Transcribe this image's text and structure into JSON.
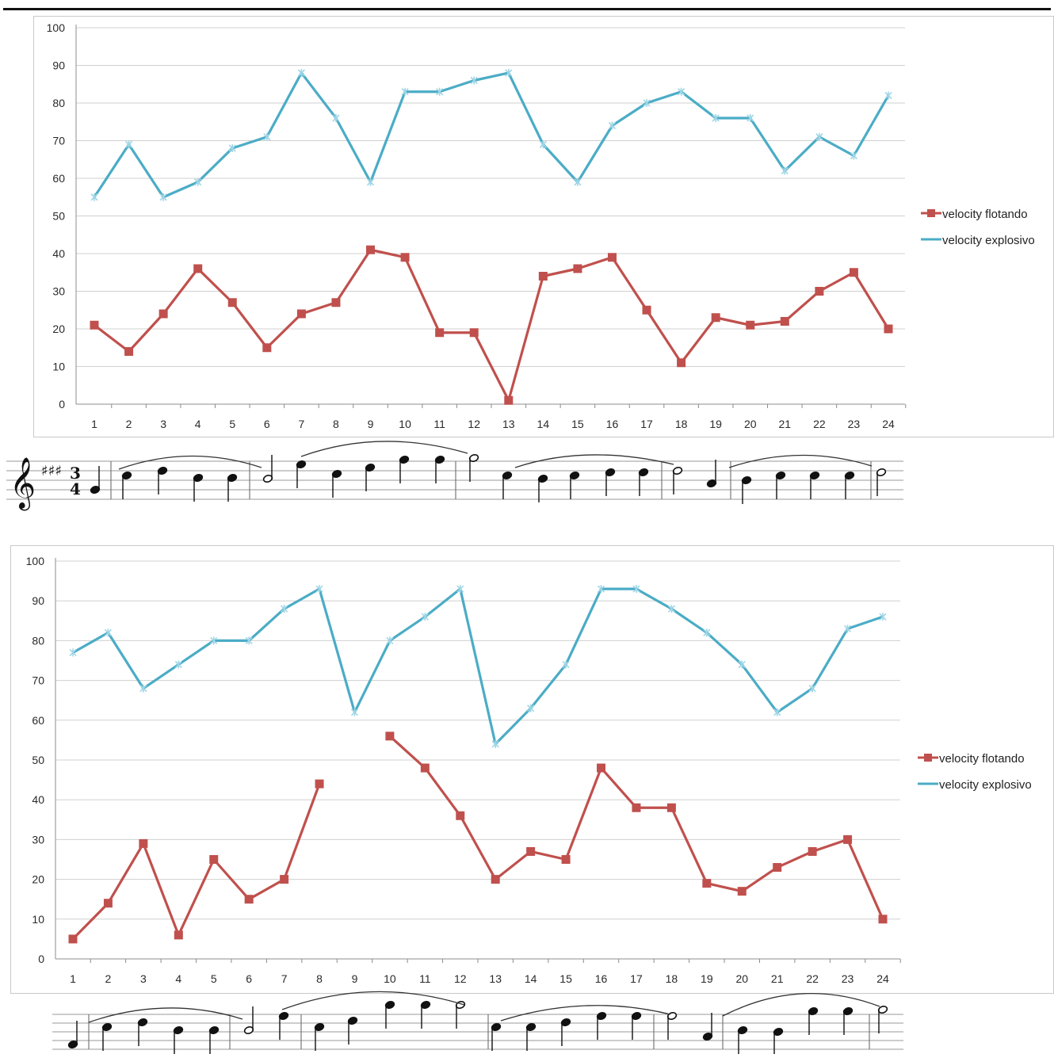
{
  "chart_data": [
    {
      "type": "line",
      "title": "",
      "xlabel": "",
      "ylabel": "",
      "categories": [
        "1",
        "2",
        "3",
        "4",
        "5",
        "6",
        "7",
        "8",
        "9",
        "10",
        "11",
        "12",
        "13",
        "14",
        "15",
        "16",
        "17",
        "18",
        "19",
        "20",
        "21",
        "22",
        "23",
        "24"
      ],
      "y_ticks": [
        "0",
        "10",
        "20",
        "30",
        "40",
        "50",
        "60",
        "70",
        "80",
        "90",
        "100"
      ],
      "ylim": [
        0,
        100
      ],
      "grid": true,
      "legend_position": "right",
      "series": [
        {
          "name": "velocity flotando",
          "color": "#c0504d",
          "marker": "square",
          "values": [
            21,
            14,
            24,
            36,
            27,
            15,
            24,
            27,
            41,
            39,
            19,
            19,
            1,
            34,
            36,
            39,
            25,
            11,
            23,
            21,
            22,
            30,
            35,
            20
          ]
        },
        {
          "name": "velocity explosivo",
          "color": "#4bacc6",
          "marker": "star",
          "values": [
            55,
            69,
            55,
            59,
            68,
            71,
            88,
            76,
            59,
            83,
            83,
            86,
            88,
            69,
            59,
            74,
            80,
            83,
            76,
            76,
            62,
            71,
            66,
            82
          ]
        }
      ]
    },
    {
      "type": "line",
      "title": "",
      "xlabel": "",
      "ylabel": "",
      "categories": [
        "1",
        "2",
        "3",
        "4",
        "5",
        "6",
        "7",
        "8",
        "9",
        "10",
        "11",
        "12",
        "13",
        "14",
        "15",
        "16",
        "17",
        "18",
        "19",
        "20",
        "21",
        "22",
        "23",
        "24"
      ],
      "y_ticks": [
        "0",
        "10",
        "20",
        "30",
        "40",
        "50",
        "60",
        "70",
        "80",
        "90",
        "100"
      ],
      "ylim": [
        0,
        100
      ],
      "grid": true,
      "legend_position": "right",
      "series": [
        {
          "name": "velocity flotando",
          "color": "#c0504d",
          "marker": "square",
          "values": [
            5,
            14,
            29,
            6,
            25,
            15,
            20,
            44,
            null,
            56,
            48,
            36,
            20,
            27,
            25,
            48,
            38,
            38,
            19,
            17,
            23,
            27,
            30,
            10
          ]
        },
        {
          "name": "velocity explosivo",
          "color": "#4bacc6",
          "marker": "star",
          "values": [
            77,
            82,
            68,
            74,
            80,
            80,
            88,
            93,
            62,
            80,
            86,
            93,
            54,
            63,
            74,
            93,
            93,
            88,
            82,
            74,
            62,
            68,
            83,
            86
          ]
        }
      ]
    }
  ],
  "score_excerpt": {
    "clef": "treble-clef-icon",
    "key_signature": "three-sharps",
    "time_signature": [
      "3",
      "4"
    ]
  }
}
